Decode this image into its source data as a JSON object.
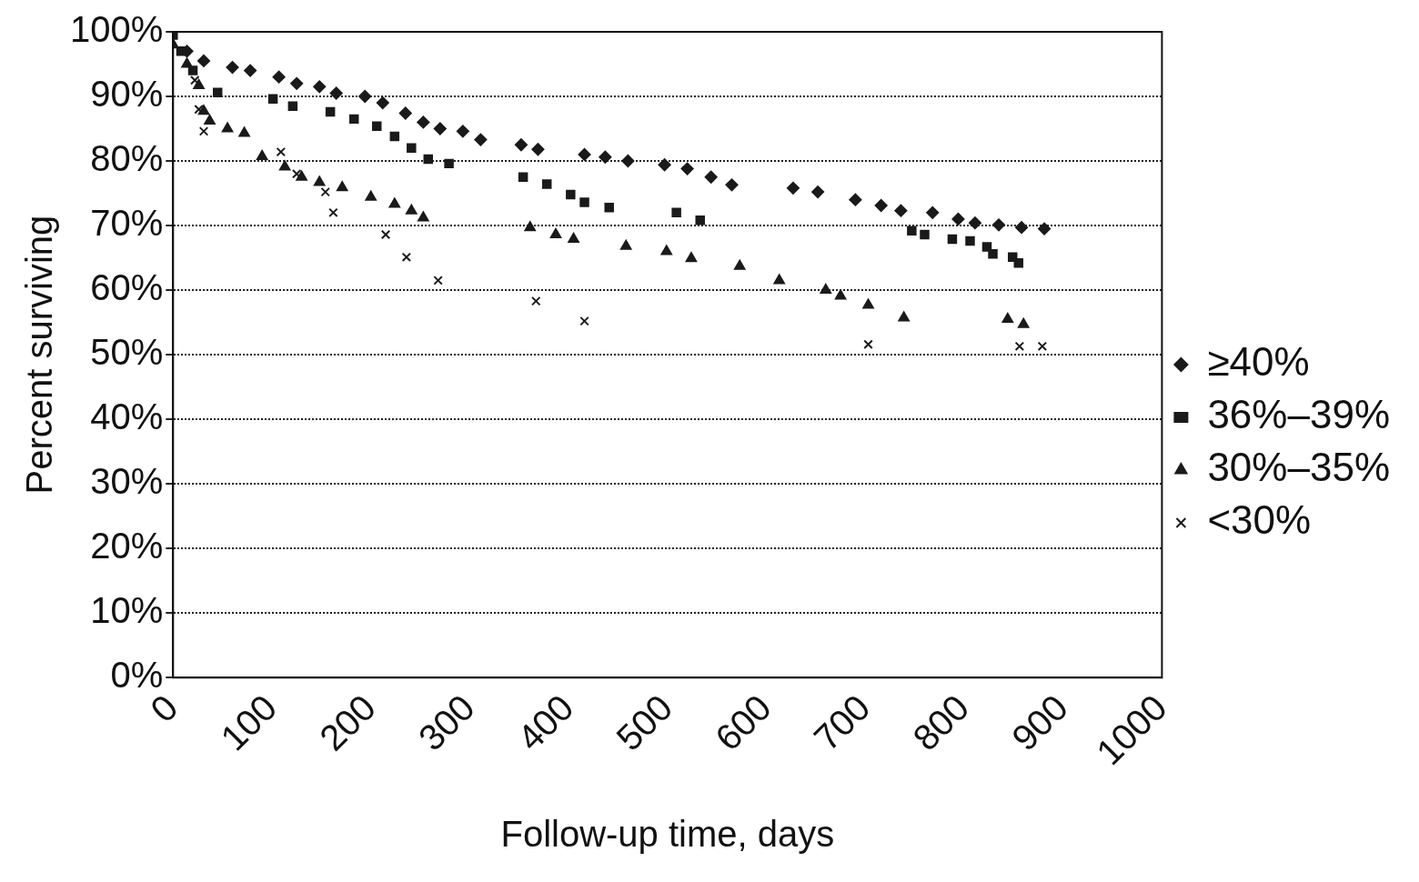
{
  "chart_data": {
    "type": "scatter",
    "xlabel": "Follow-up time, days",
    "ylabel": "Percent surviving",
    "xlim": [
      0,
      1000
    ],
    "xticks": [
      0,
      100,
      200,
      300,
      400,
      500,
      600,
      700,
      800,
      900,
      1000
    ],
    "ylim": [
      0,
      100
    ],
    "yticks": [
      {
        "value": 0,
        "label": "0%"
      },
      {
        "value": 10,
        "label": "10%"
      },
      {
        "value": 20,
        "label": "20%"
      },
      {
        "value": 30,
        "label": "30%"
      },
      {
        "value": 40,
        "label": "40%"
      },
      {
        "value": 50,
        "label": "50%"
      },
      {
        "value": 60,
        "label": "60%"
      },
      {
        "value": 70,
        "label": "70%"
      },
      {
        "value": 80,
        "label": "80%"
      },
      {
        "value": 90,
        "label": "90%"
      },
      {
        "value": 100,
        "label": "100%"
      }
    ],
    "grid": "y",
    "legend": "right",
    "series": [
      {
        "name": "≥40%",
        "color": "#1a1a1a",
        "marker": "diamond",
        "x": [
          14,
          31,
          60,
          78,
          107,
          125,
          148,
          165,
          194,
          212,
          235,
          253,
          270,
          293,
          311,
          352,
          369,
          416,
          437,
          460,
          497,
          520,
          544,
          565,
          627,
          652,
          690,
          716,
          736,
          768,
          794,
          811,
          835,
          858,
          881
        ],
        "values": [
          97,
          95.5,
          94.5,
          94,
          93,
          92,
          91.5,
          90.5,
          90,
          89,
          87.4,
          86,
          85,
          84.6,
          83.3,
          82.5,
          81.8,
          81,
          80.6,
          80,
          79.4,
          78.8,
          77.5,
          76.3,
          75.8,
          75.2,
          74,
          73.1,
          72.3,
          72,
          71,
          70.4,
          70.1,
          69.7,
          69.5
        ]
      },
      {
        "name": "36%–39%",
        "color": "#1a1a1a",
        "marker": "square",
        "x": [
          0,
          8,
          20,
          45,
          101,
          121,
          159,
          183,
          206,
          224,
          241,
          258,
          279,
          354,
          378,
          402,
          416,
          441,
          509,
          533,
          747,
          760,
          788,
          806,
          823,
          829,
          849,
          855
        ],
        "values": [
          99.5,
          97,
          94,
          90.6,
          89.6,
          88.5,
          87.6,
          86.5,
          85.4,
          83.8,
          82,
          80.3,
          79.6,
          77.5,
          76.4,
          74.8,
          73.6,
          72.8,
          72,
          70.8,
          69.2,
          68.6,
          67.9,
          67.6,
          66.7,
          65.6,
          65.1,
          64.2
        ]
      },
      {
        "name": "30%–35%",
        "color": "#1a1a1a",
        "marker": "triangle",
        "x": [
          0,
          14,
          26,
          31,
          37,
          55,
          72,
          90,
          113,
          130,
          148,
          171,
          200,
          224,
          241,
          253,
          361,
          387,
          405,
          458,
          499,
          524,
          573,
          613,
          660,
          675,
          703,
          739,
          844,
          860
        ],
        "values": [
          98,
          95,
          91.7,
          87.7,
          86.2,
          85,
          84.3,
          80.7,
          79.1,
          77.5,
          76.7,
          75.9,
          74.4,
          73.3,
          72.3,
          71.2,
          69.7,
          68.6,
          67.9,
          66.8,
          66,
          64.9,
          63.7,
          61.5,
          60,
          59.1,
          57.7,
          55.7,
          55.5,
          54.7
        ]
      },
      {
        "name": "<30%",
        "color": "#1a1a1a",
        "marker": "cross",
        "x": [
          22,
          26,
          31,
          109,
          125,
          154,
          162,
          215,
          236,
          268,
          367,
          416,
          703,
          856,
          879
        ],
        "values": [
          92.5,
          88,
          84.6,
          81.4,
          78,
          75.2,
          72,
          68.6,
          65.1,
          61.5,
          58.3,
          55.2,
          51.6,
          51.3,
          51.3
        ]
      }
    ]
  }
}
